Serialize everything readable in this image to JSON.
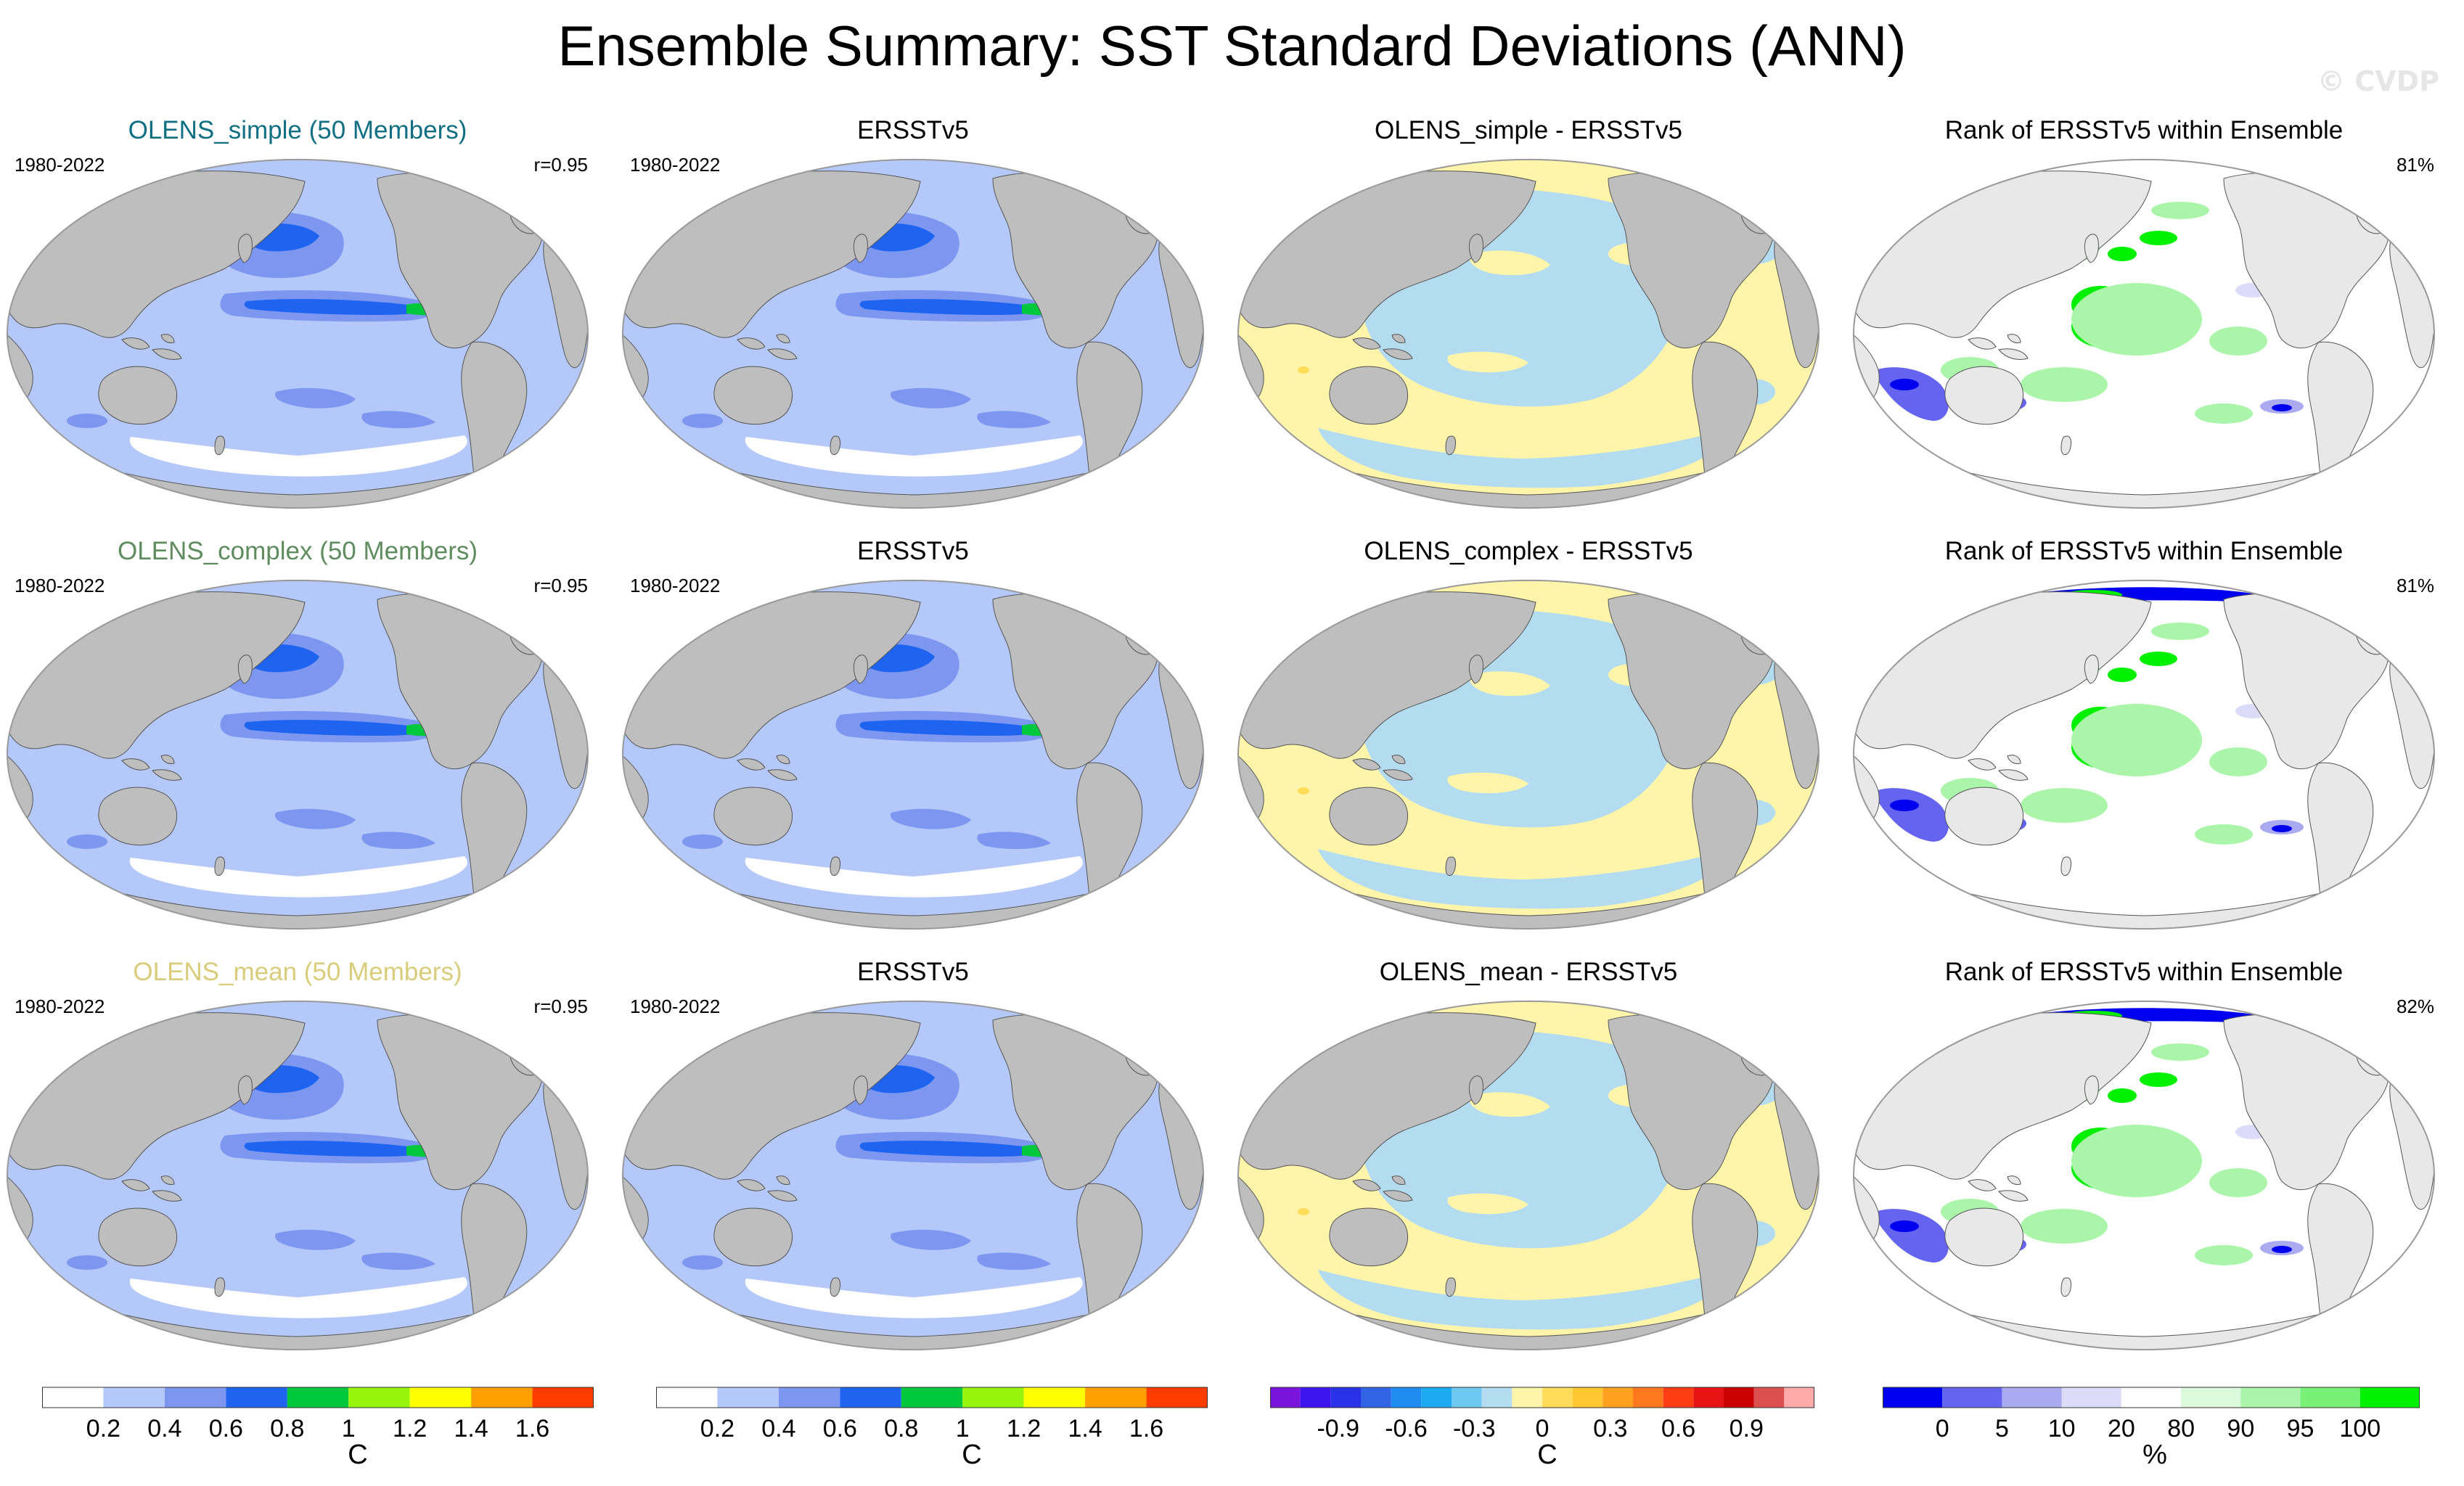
{
  "title": "Ensemble Summary: SST Standard Deviations (ANN)",
  "watermark": "© CVDP",
  "rows": [
    {
      "model": {
        "title": "OLENS_simple (50 Members)",
        "years": "1980-2022",
        "corr": "r=0.95",
        "title_color": "#106f82",
        "map_style": "std"
      },
      "obs": {
        "title": "ERSSTv5",
        "years": "1980-2022",
        "map_style": "std"
      },
      "diff": {
        "title": "OLENS_simple - ERSSTv5",
        "map_style": "diff"
      },
      "rank": {
        "title": "Rank of ERSSTv5 within Ensemble",
        "pct": "81%",
        "map_style": "rank"
      }
    },
    {
      "model": {
        "title": "OLENS_complex (50 Members)",
        "years": "1980-2022",
        "corr": "r=0.95",
        "title_color": "#5f8c5f",
        "map_style": "std"
      },
      "obs": {
        "title": "ERSSTv5",
        "years": "1980-2022",
        "map_style": "std"
      },
      "diff": {
        "title": "OLENS_complex - ERSSTv5",
        "map_style": "diff"
      },
      "rank": {
        "title": "Rank of ERSSTv5 within Ensemble",
        "pct": "81%",
        "map_style": "rank"
      }
    },
    {
      "model": {
        "title": "OLENS_mean (50 Members)",
        "years": "1980-2022",
        "corr": "r=0.95",
        "title_color": "#d9cc7a",
        "map_style": "std"
      },
      "obs": {
        "title": "ERSSTv5",
        "years": "1980-2022",
        "map_style": "std"
      },
      "diff": {
        "title": "OLENS_mean - ERSSTv5",
        "map_style": "diff"
      },
      "rank": {
        "title": "Rank of ERSSTv5 within Ensemble",
        "pct": "82%",
        "map_style": "rank"
      }
    }
  ],
  "colorbars": [
    {
      "name": "std-model",
      "colors": [
        "#ffffff",
        "#b4c8fa",
        "#7d96f0",
        "#1e64f0",
        "#00c83c",
        "#96f50a",
        "#ffff00",
        "#ffa000",
        "#ff3c00"
      ],
      "tick_labels": [
        "0.2",
        "0.4",
        "0.6",
        "0.8",
        "1",
        "1.2",
        "1.4",
        "1.6"
      ],
      "unit": "C"
    },
    {
      "name": "std-obs",
      "colors": [
        "#ffffff",
        "#b4c8fa",
        "#7d96f0",
        "#1e64f0",
        "#00c83c",
        "#96f50a",
        "#ffff00",
        "#ffa000",
        "#ff3c00"
      ],
      "tick_labels": [
        "0.2",
        "0.4",
        "0.6",
        "0.8",
        "1",
        "1.2",
        "1.4",
        "1.6"
      ],
      "unit": "C"
    },
    {
      "name": "diff",
      "colors": [
        "#7814dc",
        "#3c14f0",
        "#2832e6",
        "#3264e6",
        "#1e8cf0",
        "#1eaaf0",
        "#6ec8f0",
        "#b4dcf0",
        "#fff5aa",
        "#ffdc5a",
        "#ffc832",
        "#ffa01e",
        "#ff781e",
        "#ff3c14",
        "#e61414",
        "#c80000",
        "#dc5050",
        "#ffaaaa"
      ],
      "tick_labels": [
        "-0.9",
        "-0.6",
        "-0.3",
        "0",
        "0.3",
        "0.6",
        "0.9"
      ],
      "unit": "C"
    },
    {
      "name": "rank",
      "colors": [
        "#0000f0",
        "#6464f0",
        "#aaaaf0",
        "#dcdcf8",
        "#ffffff",
        "#dcfadc",
        "#aaf5aa",
        "#78f078",
        "#00f000"
      ],
      "tick_labels": [
        "0",
        "5",
        "10",
        "20",
        "80",
        "90",
        "95",
        "100"
      ],
      "unit": "%"
    }
  ]
}
